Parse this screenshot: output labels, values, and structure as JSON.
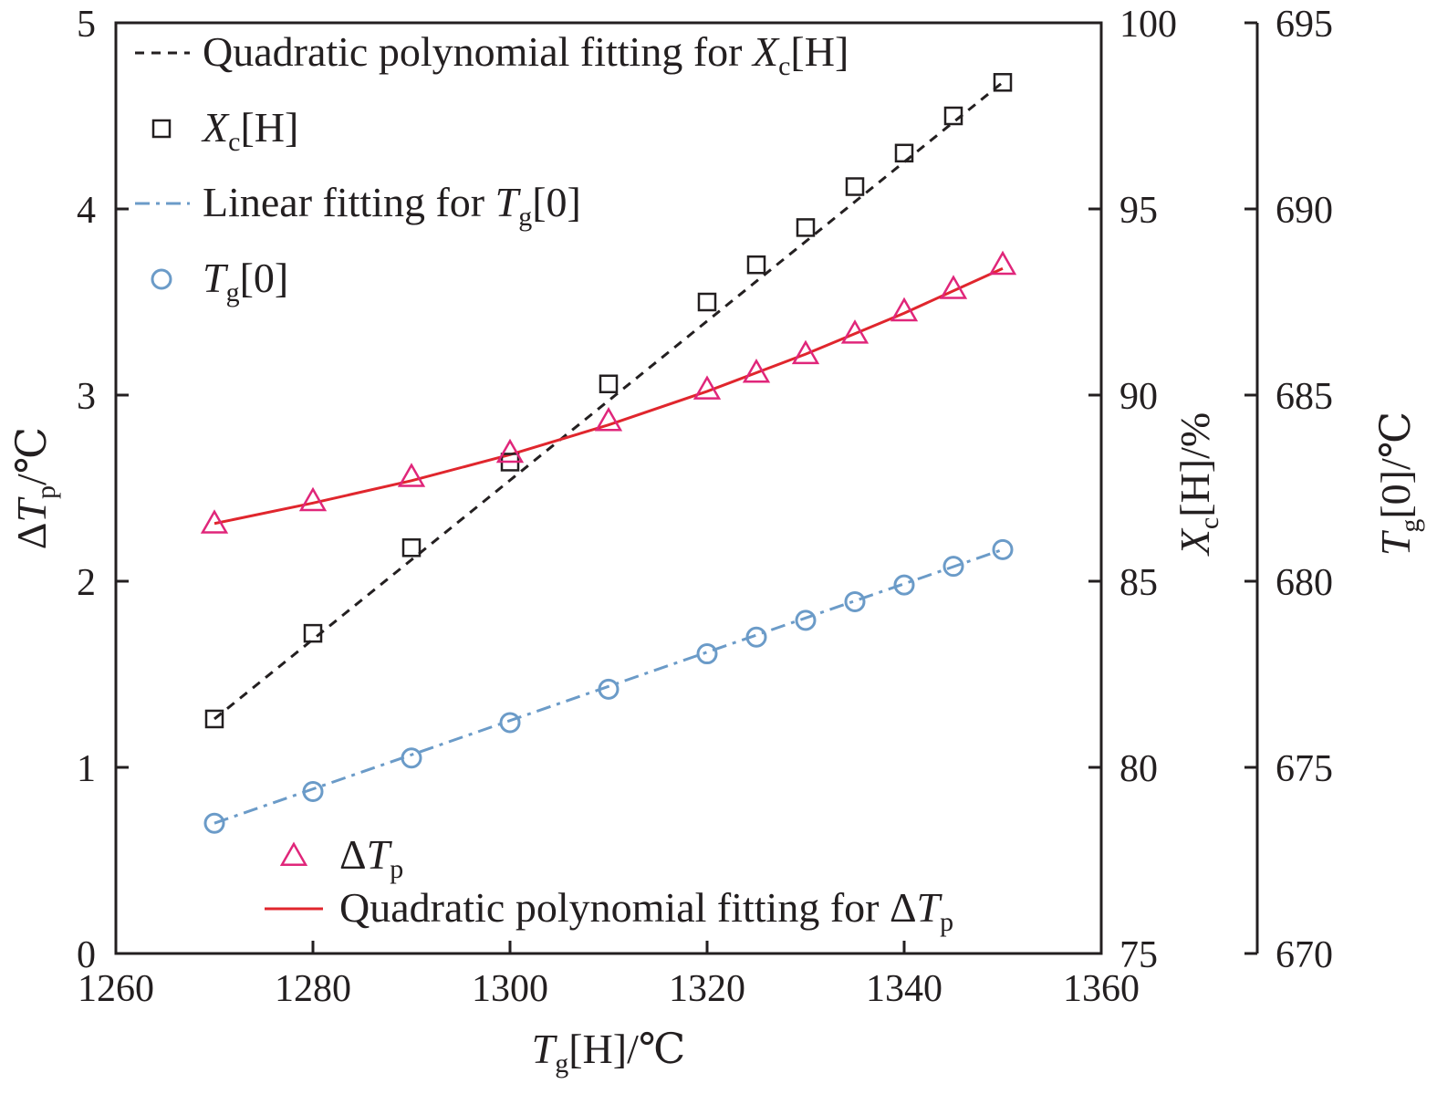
{
  "chart_data": {
    "type": "line",
    "x": [
      1270,
      1280,
      1290,
      1300,
      1310,
      1320,
      1325,
      1330,
      1335,
      1340,
      1345,
      1350
    ],
    "xlim": [
      1260,
      1360
    ],
    "xticks": [
      "1260",
      "1280",
      "1300",
      "1320",
      "1340",
      "1360"
    ],
    "xlabel": {
      "main": "T",
      "sub": "g",
      "rest": "[H]/℃"
    },
    "axes": {
      "left": {
        "label": {
          "pre": "Δ",
          "main": "T",
          "sub": "p",
          "rest": "/℃"
        },
        "ylim": [
          0,
          5
        ],
        "ticks": [
          "0",
          "1",
          "2",
          "3",
          "4",
          "5"
        ]
      },
      "right1": {
        "label": {
          "main": "X",
          "sub": "c",
          "rest": "[H]/%"
        },
        "ylim": [
          75,
          100
        ],
        "ticks": [
          "75",
          "80",
          "85",
          "90",
          "95",
          "100"
        ]
      },
      "right2": {
        "label": {
          "main": "T",
          "sub": "g",
          "rest": "[0]/℃"
        },
        "ylim": [
          670,
          695
        ],
        "ticks": [
          "670",
          "675",
          "680",
          "685",
          "690",
          "695"
        ]
      }
    },
    "series": [
      {
        "name": "X_c[H]",
        "axis": "right1",
        "marker": "square",
        "color": "#231f20",
        "values": [
          81.3,
          83.6,
          85.9,
          88.2,
          90.3,
          92.5,
          93.5,
          94.5,
          95.6,
          96.5,
          97.5,
          98.4
        ]
      },
      {
        "name": "T_g[0]",
        "axis": "right2",
        "marker": "circle",
        "color": "#6b9bc8",
        "values": [
          673.5,
          674.35,
          675.25,
          676.2,
          677.1,
          678.05,
          678.5,
          678.95,
          679.45,
          679.9,
          680.4,
          680.85
        ]
      },
      {
        "name": "ΔT_p",
        "axis": "left",
        "marker": "triangle",
        "color": "#e0267a",
        "values": [
          2.31,
          2.43,
          2.56,
          2.69,
          2.86,
          3.03,
          3.12,
          3.22,
          3.33,
          3.45,
          3.57,
          3.7
        ]
      }
    ],
    "fits": [
      {
        "name": "Quadratic polynomial fitting for X_c[H]",
        "axis": "right1",
        "style": "dashed",
        "color": "#231f20",
        "x": [
          1270,
          1350
        ],
        "values": [
          81.3,
          98.4
        ]
      },
      {
        "name": "Linear fitting for T_g[0]",
        "axis": "right2",
        "style": "dashdot",
        "color": "#6b9bc8",
        "x": [
          1270,
          1350
        ],
        "values": [
          673.5,
          680.85
        ]
      },
      {
        "name": "Quadratic polynomial fitting for ΔT_p",
        "axis": "left",
        "style": "solid",
        "color": "#e0262d",
        "x": [
          1270,
          1280,
          1290,
          1300,
          1310,
          1320,
          1330,
          1340,
          1350
        ],
        "values": [
          2.31,
          2.42,
          2.54,
          2.68,
          2.84,
          3.02,
          3.22,
          3.44,
          3.68
        ]
      }
    ],
    "legend_top": [
      {
        "text": "Quadratic polynomial fitting for ",
        "main": "X",
        "sub": "c",
        "rest": "[H]"
      },
      {
        "text": "",
        "main": "X",
        "sub": "c",
        "rest": "[H]"
      },
      {
        "text": "Linear fitting for ",
        "main": "T",
        "sub": "g",
        "rest": "[0]"
      },
      {
        "text": "",
        "main": "T",
        "sub": "g",
        "rest": "[0]"
      }
    ],
    "legend_bottom": [
      {
        "text": "Δ",
        "main": "T",
        "sub": "p",
        "rest": ""
      },
      {
        "text": "Quadratic polynomial fitting for Δ",
        "main": "T",
        "sub": "p",
        "rest": ""
      }
    ],
    "legend_placement": [
      "top-left",
      "bottom-right"
    ],
    "grid": false
  }
}
